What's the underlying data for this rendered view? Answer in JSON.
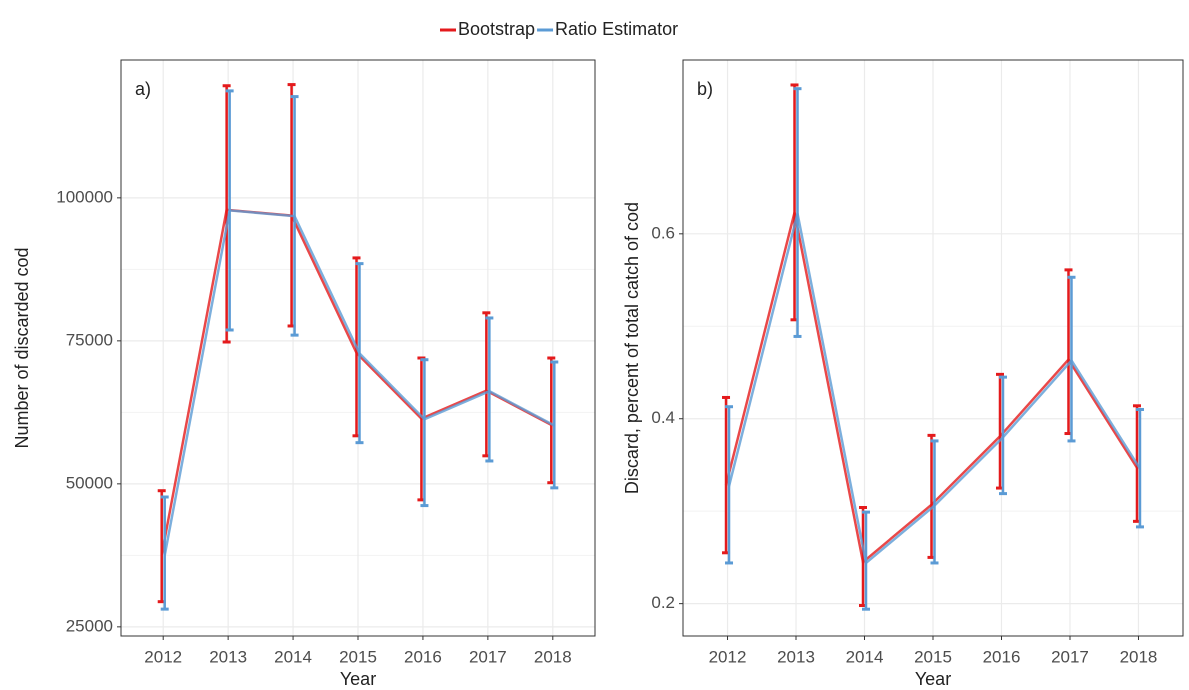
{
  "chart_data": [
    {
      "type": "line",
      "annotation": "a)",
      "xlabel": "Year",
      "ylabel": "Number of discarded cod",
      "x": [
        2012,
        2013,
        2014,
        2015,
        2016,
        2017,
        2018
      ],
      "xlim": [
        2011.35,
        2018.65
      ],
      "xticks": [
        2012,
        2013,
        2014,
        2015,
        2016,
        2017,
        2018
      ],
      "ylim": [
        23400,
        124100
      ],
      "yticks": [
        25000,
        50000,
        75000,
        100000
      ],
      "grid": true,
      "series": [
        {
          "name": "Bootstrap",
          "color": "#e41a1c",
          "values": [
            37600,
            97900,
            96900,
            72900,
            61400,
            66300,
            60300
          ],
          "lower": [
            29400,
            74800,
            77600,
            58400,
            47200,
            54900,
            50200
          ],
          "upper": [
            48800,
            119600,
            119800,
            89500,
            72000,
            79900,
            72000
          ]
        },
        {
          "name": "Ratio Estimator",
          "color": "#5b9bd5",
          "values": [
            37500,
            97800,
            96800,
            72800,
            61300,
            66200,
            60200
          ],
          "lower": [
            28100,
            76900,
            76000,
            57200,
            46200,
            54000,
            49300
          ],
          "upper": [
            47700,
            118700,
            117700,
            88500,
            71700,
            79000,
            71300
          ]
        }
      ]
    },
    {
      "type": "line",
      "annotation": "b)",
      "xlabel": "Year",
      "ylabel": "Discard, percent of total catch of cod",
      "x": [
        2012,
        2013,
        2014,
        2015,
        2016,
        2017,
        2018
      ],
      "xlim": [
        2011.35,
        2018.65
      ],
      "xticks": [
        2012,
        2013,
        2014,
        2015,
        2016,
        2017,
        2018
      ],
      "ylim": [
        0.165,
        0.788
      ],
      "yticks": [
        0.2,
        0.4,
        0.6
      ],
      "grid": true,
      "series": [
        {
          "color": "#e41a1c",
          "values": [
            0.328,
            0.623,
            0.245,
            0.307,
            0.381,
            0.464,
            0.347
          ],
          "lower": [
            0.255,
            0.507,
            0.198,
            0.25,
            0.325,
            0.384,
            0.289
          ],
          "upper": [
            0.423,
            0.761,
            0.304,
            0.382,
            0.448,
            0.561,
            0.414
          ]
        },
        {
          "color": "#5b9bd5",
          "values": [
            0.327,
            0.622,
            0.244,
            0.306,
            0.38,
            0.463,
            0.346
          ],
          "lower": [
            0.244,
            0.489,
            0.194,
            0.244,
            0.319,
            0.376,
            0.283
          ],
          "upper": [
            0.413,
            0.757,
            0.299,
            0.376,
            0.445,
            0.553,
            0.41
          ]
        }
      ]
    }
  ]
}
